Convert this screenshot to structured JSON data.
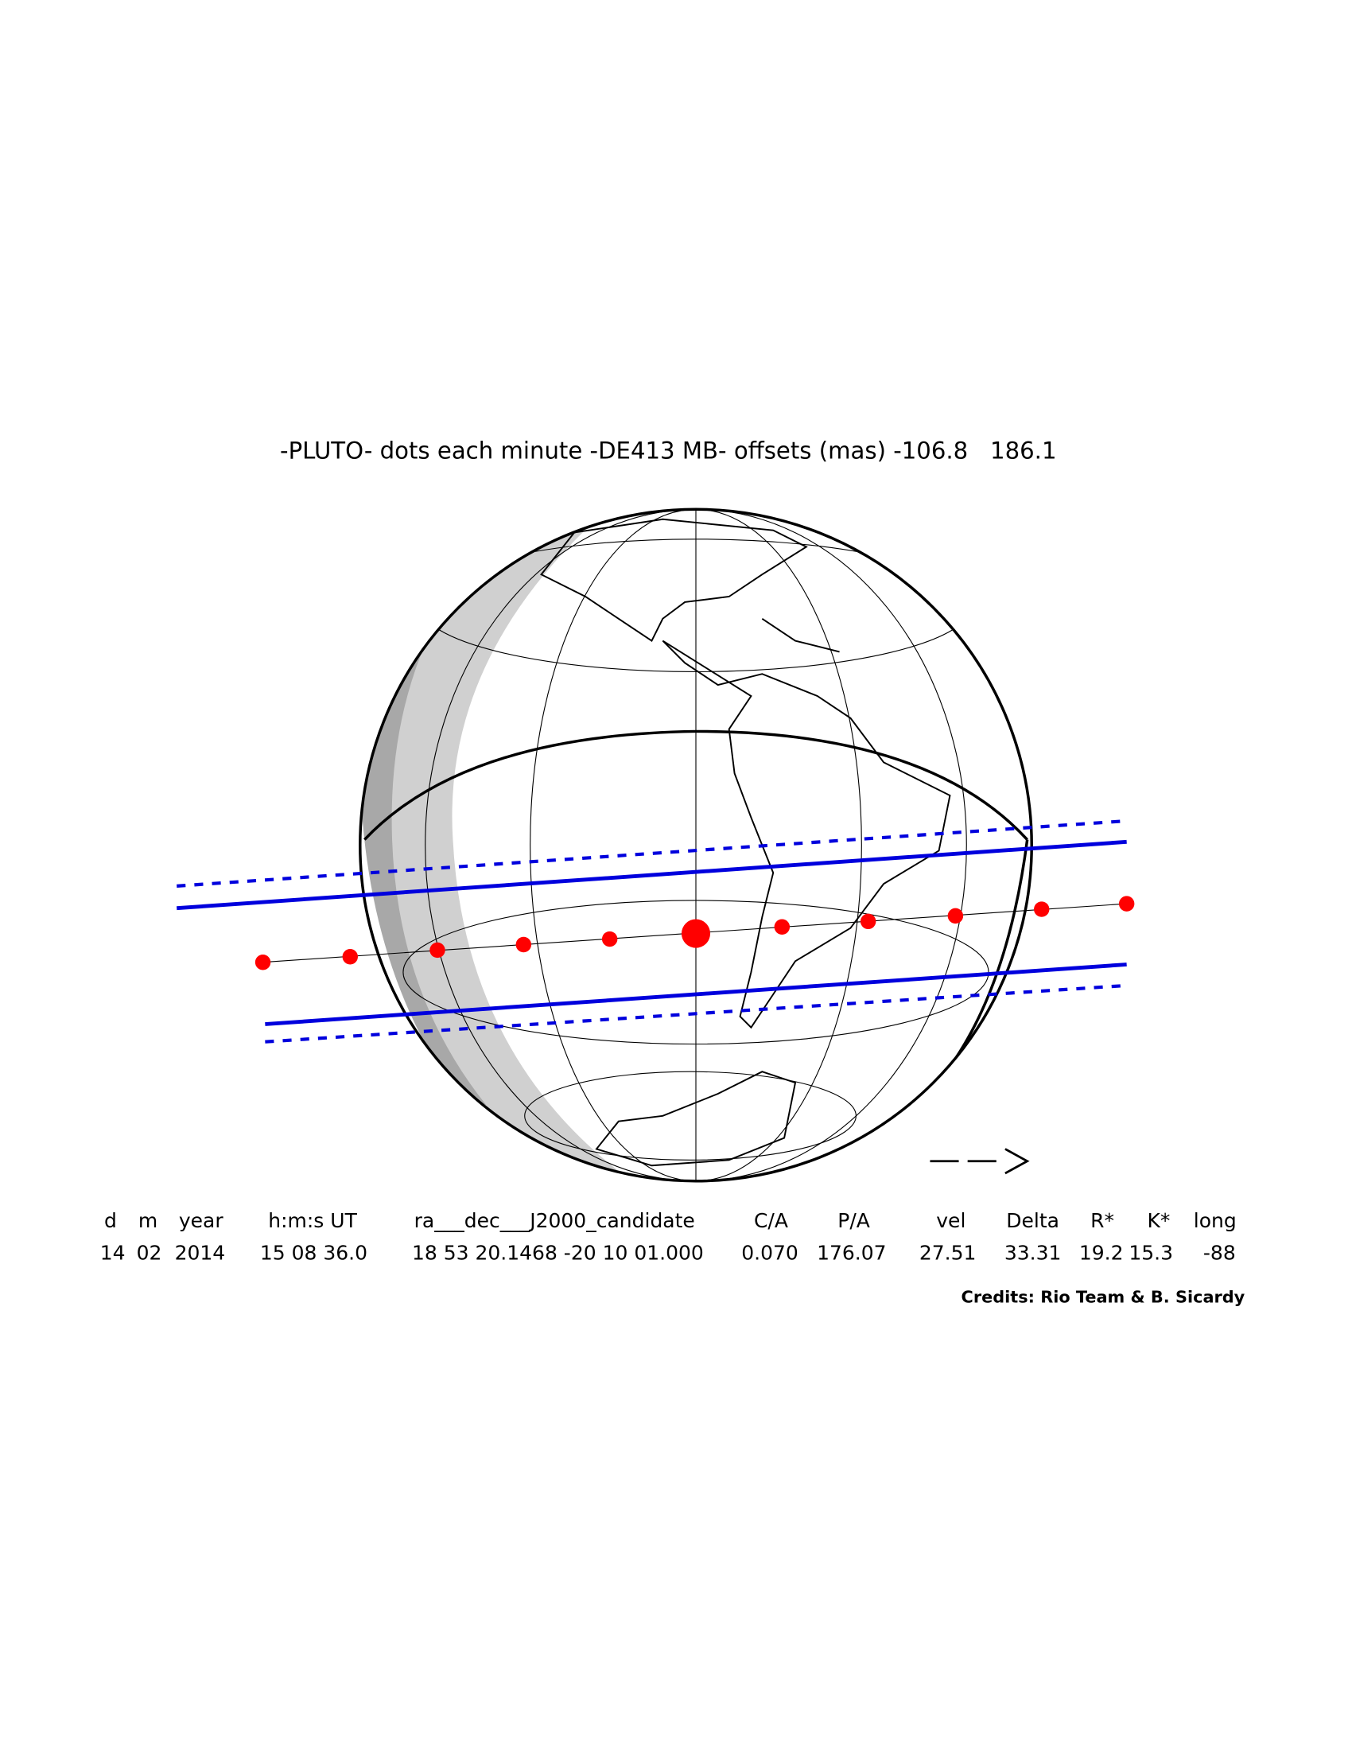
{
  "title": "-PLUTO- dots each minute -DE413 MB- offsets (mas) -106.8   186.1",
  "table": {
    "headers": [
      "d",
      "m",
      "year",
      "h:m:s UT",
      "ra___dec___J2000_candidate",
      "C/A",
      "P/A",
      "vel",
      "Delta",
      "R*",
      "K*",
      "long"
    ],
    "values": [
      "14",
      "02",
      "2014",
      "15 08 36.0",
      "18 53 20.1468 -20 10 01.000",
      "0.070",
      "176.07",
      "27.51",
      "33.31",
      "19.2",
      "15.3",
      "-88"
    ]
  },
  "credits": "Credits: Rio Team & B. Sicardy"
}
